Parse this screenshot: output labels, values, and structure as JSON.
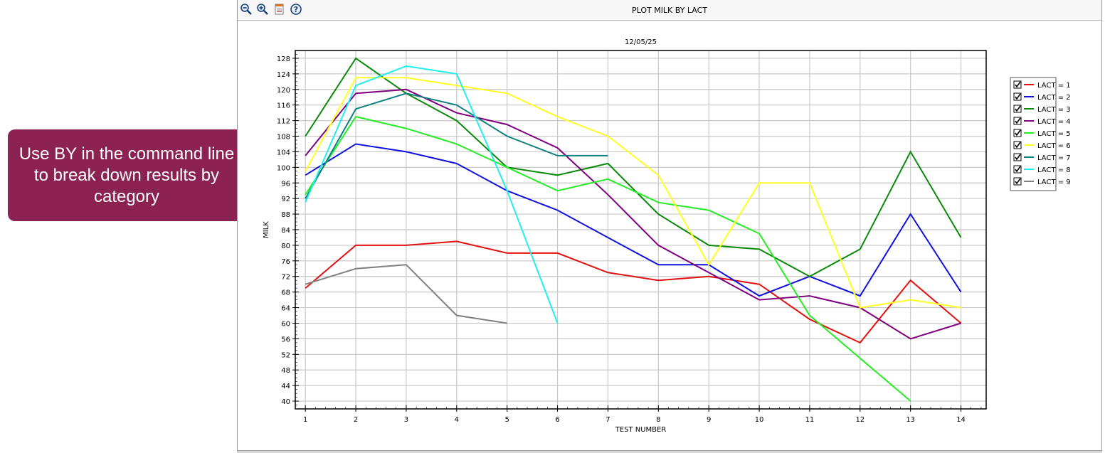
{
  "callout": {
    "text": "Use BY in the command line to break down results by category"
  },
  "window": {
    "title": "PLOT MILK BY LACT",
    "toolbar": {
      "zoom_out_icon": "zoom-out-icon",
      "zoom_in_icon": "zoom-in-icon",
      "print_icon": "print-icon",
      "help_icon": "help-icon"
    }
  },
  "chart_data": {
    "type": "line",
    "title": "12/05/25",
    "xlabel": "TEST NUMBER",
    "ylabel": "MILK",
    "x": [
      1,
      2,
      3,
      4,
      5,
      6,
      7,
      8,
      9,
      10,
      11,
      12,
      13,
      14
    ],
    "xlim": [
      0.8,
      14.5
    ],
    "ylim": [
      38,
      130
    ],
    "yticks": [
      40,
      44,
      48,
      52,
      56,
      60,
      64,
      68,
      72,
      76,
      80,
      84,
      88,
      92,
      96,
      100,
      104,
      108,
      112,
      116,
      120,
      124,
      128
    ],
    "grid": true,
    "legend_position": "right",
    "series": [
      {
        "name": "LACT = 1",
        "color": "#e31010",
        "x": [
          1,
          2,
          3,
          4,
          5,
          6,
          7,
          8,
          9,
          10,
          11,
          12,
          13,
          14
        ],
        "values": [
          69,
          80,
          80,
          81,
          78,
          78,
          73,
          71,
          72,
          70,
          61,
          55,
          71,
          60
        ]
      },
      {
        "name": "LACT = 2",
        "color": "#1010e0",
        "x": [
          1,
          2,
          3,
          4,
          5,
          6,
          7,
          8,
          9,
          10,
          11,
          12,
          13,
          14
        ],
        "values": [
          98,
          106,
          104,
          101,
          94,
          89,
          82,
          75,
          75,
          67,
          72,
          67,
          88,
          68
        ]
      },
      {
        "name": "LACT = 3",
        "color": "#0a8a0a",
        "x": [
          1,
          2,
          3,
          4,
          5,
          6,
          7,
          8,
          9,
          10,
          11,
          12,
          13,
          14
        ],
        "values": [
          108,
          128,
          119,
          112,
          100,
          98,
          101,
          88,
          80,
          79,
          72,
          79,
          104,
          82
        ]
      },
      {
        "name": "LACT = 4",
        "color": "#800080",
        "x": [
          1,
          2,
          3,
          4,
          5,
          6,
          7,
          8,
          9,
          10,
          11,
          12,
          13,
          14
        ],
        "values": [
          103,
          119,
          120,
          114,
          111,
          105,
          93,
          80,
          73,
          66,
          67,
          64,
          56,
          60
        ]
      },
      {
        "name": "LACT = 5",
        "color": "#22ee22",
        "x": [
          1,
          2,
          3,
          4,
          5,
          6,
          7,
          8,
          9,
          10,
          11,
          12,
          13
        ],
        "values": [
          93,
          113,
          110,
          106,
          100,
          94,
          97,
          91,
          89,
          83,
          62,
          51,
          40
        ]
      },
      {
        "name": "LACT = 6",
        "color": "#ffff22",
        "x": [
          1,
          2,
          3,
          4,
          5,
          6,
          7,
          8,
          9,
          10,
          11,
          12,
          13,
          14
        ],
        "values": [
          99,
          123,
          123,
          121,
          119,
          113,
          108,
          98,
          75,
          96,
          96,
          64,
          66,
          64
        ]
      },
      {
        "name": "LACT = 7",
        "color": "#0f8080",
        "x": [
          1,
          2,
          3,
          4,
          5,
          6,
          7
        ],
        "values": [
          92,
          115,
          119,
          116,
          108,
          103,
          103
        ]
      },
      {
        "name": "LACT = 8",
        "color": "#22eeee",
        "x": [
          1,
          2,
          3,
          4,
          5,
          6
        ],
        "values": [
          91,
          121,
          126,
          124,
          94,
          60
        ]
      },
      {
        "name": "LACT = 9",
        "color": "#808080",
        "x": [
          1,
          2,
          3,
          4,
          5
        ],
        "values": [
          70,
          74,
          75,
          62,
          60
        ]
      }
    ]
  }
}
